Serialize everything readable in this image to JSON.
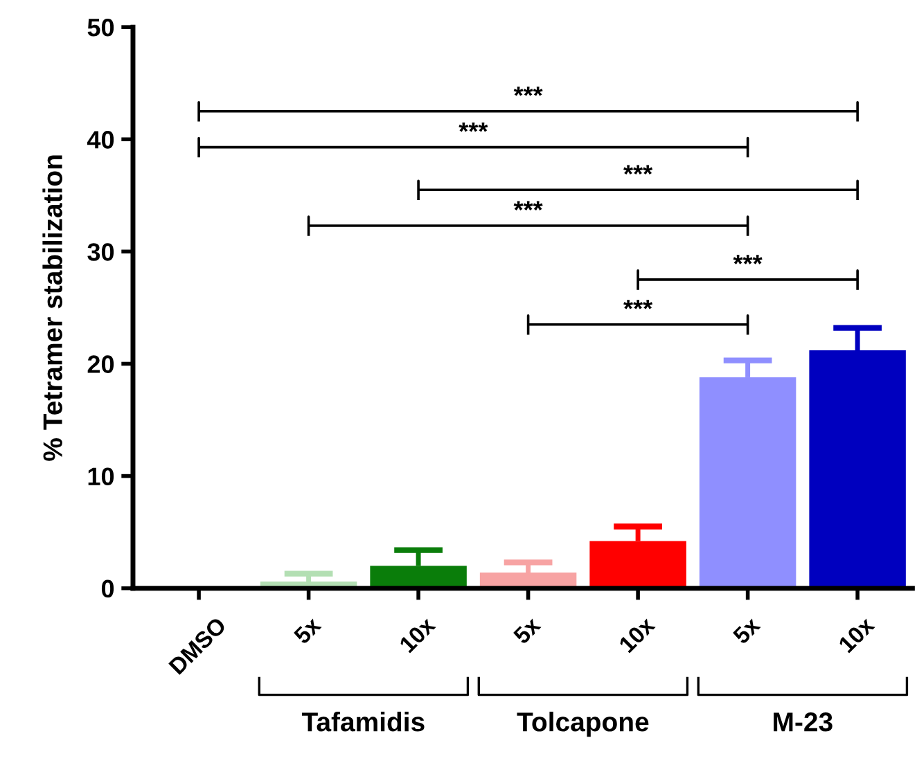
{
  "chart_data": {
    "type": "bar",
    "ylabel": "% Tetramer stabilization",
    "categories": [
      "DMSO",
      "5x",
      "10x",
      "5x",
      "10x",
      "5x",
      "10x"
    ],
    "values": [
      0,
      0.6,
      2.0,
      1.4,
      4.2,
      18.8,
      21.2
    ],
    "colors": [
      "#ffffff",
      "#b3dfb3",
      "#0a7d0a",
      "#f7a3a3",
      "#ff0000",
      "#8f8fff",
      "#0000bf"
    ],
    "errors": [
      null,
      [
        0.6,
        1.3
      ],
      [
        2.0,
        3.4
      ],
      [
        1.4,
        2.3
      ],
      [
        4.2,
        5.5
      ],
      [
        18.8,
        20.3
      ],
      [
        21.2,
        23.2
      ]
    ],
    "ylim": [
      0,
      50
    ],
    "yticks": [
      0,
      10,
      20,
      30,
      40,
      50
    ],
    "grid": false,
    "annotations": [
      "***",
      "***",
      "***",
      "***",
      "***",
      "***",
      "Tafamidis",
      "Tolcapone",
      "M-23"
    ]
  }
}
